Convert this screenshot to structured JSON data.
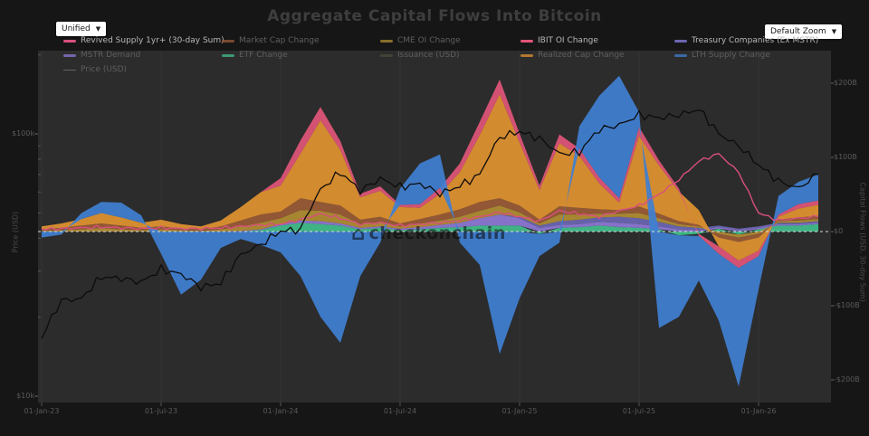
{
  "title": "Aggregate Capital Flows Into Bitcoin",
  "controls": {
    "left_dropdown": "Unified",
    "right_dropdown": "Default Zoom",
    "caret": "▼"
  },
  "watermark": {
    "icon": "⌂",
    "text": "checkonchain"
  },
  "legend": {
    "items": [
      {
        "label": "Revived Supply 1yr+ (30-day Sum)",
        "color": "#d94f7e",
        "dim": false,
        "row": 0,
        "col": 0,
        "marker": "line"
      },
      {
        "label": "Market Cap Change",
        "color": "#9a5a35",
        "dim": true,
        "row": 0,
        "col": 1,
        "marker": "line"
      },
      {
        "label": "CME OI Change",
        "color": "#b08d33",
        "dim": true,
        "row": 0,
        "col": 2,
        "marker": "line"
      },
      {
        "label": "IBIT OI Change",
        "color": "#e05578",
        "dim": false,
        "row": 0,
        "col": 3,
        "marker": "line"
      },
      {
        "label": "Treasury Companies (Ex MSTR)",
        "color": "#6b66b3",
        "dim": false,
        "row": 0,
        "col": 4,
        "marker": "line"
      },
      {
        "label": "MSTR Demand",
        "color": "#8d77d4",
        "dim": true,
        "row": 1,
        "col": 0,
        "marker": "line"
      },
      {
        "label": "ETF Change",
        "color": "#41bd8b",
        "dim": true,
        "row": 1,
        "col": 1,
        "marker": "line"
      },
      {
        "label": "Issuance (USD)",
        "color": "#4a4a3a",
        "dim": true,
        "row": 1,
        "col": 2,
        "marker": "line"
      },
      {
        "label": "Realized Cap Change",
        "color": "#e0922f",
        "dim": true,
        "row": 1,
        "col": 3,
        "marker": "line"
      },
      {
        "label": "LTH Supply Change",
        "color": "#3f7fd1",
        "dim": true,
        "row": 1,
        "col": 4,
        "marker": "line"
      },
      {
        "label": "Price (USD)",
        "color": "#777777",
        "dim": true,
        "row": 2,
        "col": 0,
        "marker": "thin-line"
      }
    ]
  },
  "axes": {
    "x": {
      "ticks": [
        {
          "label": "01-Jan-23",
          "t": 0
        },
        {
          "label": "01-Jul-23",
          "t": 6
        },
        {
          "label": "01-Jan-24",
          "t": 12
        },
        {
          "label": "01-Jul-24",
          "t": 18
        },
        {
          "label": "01-Jan-25",
          "t": 24
        },
        {
          "label": "01-Jul-25",
          "t": 30
        },
        {
          "label": "01-Jan-26",
          "t": 36
        }
      ]
    },
    "left": {
      "title": "Price (USD)",
      "scale": "log",
      "ticks": [
        {
          "label": "$100k",
          "value": 100000
        },
        {
          "label": "$10k",
          "value": 10000
        }
      ],
      "range_usd": [
        9500,
        208000
      ]
    },
    "right": {
      "title": "Capital Flows (USD, 30-day Sum)",
      "scale": "linear",
      "ticks": [
        {
          "label": "$200B",
          "value": 200
        },
        {
          "label": "$100B",
          "value": 100
        },
        {
          "label": "$0",
          "value": 0
        },
        {
          "label": "-$100B",
          "value": -100
        },
        {
          "label": "-$200B",
          "value": -200
        }
      ],
      "range_billion_usd": [
        -230,
        244
      ]
    }
  },
  "chart_data": {
    "type": "area",
    "x": {
      "start": "Jan-2023",
      "step_months": 1,
      "count": 40
    },
    "zero_line": 0,
    "units_right": "billion USD (30-day sum)",
    "units_left": "USD",
    "series": [
      {
        "name": "ETF Change",
        "kind": "stacked-area",
        "axis": "right",
        "color": "#41bd8b",
        "values": [
          0,
          0,
          0,
          0,
          0,
          0,
          0,
          0,
          0,
          0,
          0,
          2,
          8,
          12,
          10,
          8,
          3,
          5,
          2,
          3,
          5,
          6,
          8,
          8,
          8,
          -3,
          5,
          6,
          8,
          6,
          5,
          3,
          -5,
          -3,
          4,
          -4,
          3,
          8,
          8,
          10
        ]
      },
      {
        "name": "MSTR Demand",
        "kind": "stacked-area",
        "axis": "right",
        "color": "#8d77d4",
        "values": [
          0,
          0,
          0,
          0,
          0,
          0,
          0,
          0,
          0,
          0,
          1,
          1,
          2,
          3,
          4,
          3,
          2,
          2,
          2,
          3,
          4,
          6,
          10,
          15,
          10,
          5,
          4,
          4,
          5,
          6,
          5,
          4,
          3,
          2,
          2,
          2,
          2,
          2,
          2,
          2
        ]
      },
      {
        "name": "Treasury Companies (Ex MSTR)",
        "kind": "stacked-area",
        "axis": "right",
        "color": "#6b66b3",
        "values": [
          0,
          0,
          0,
          0,
          0,
          0,
          0,
          0,
          0,
          0,
          0,
          0,
          0,
          0,
          0,
          0,
          0,
          0,
          0,
          0,
          0,
          0,
          0,
          0,
          2,
          3,
          5,
          6,
          6,
          8,
          8,
          6,
          4,
          3,
          2,
          2,
          2,
          2,
          2,
          2
        ]
      },
      {
        "name": "CME OI Change",
        "kind": "stacked-area",
        "axis": "right",
        "color": "#b08d33",
        "values": [
          1,
          2,
          3,
          5,
          3,
          2,
          3,
          2,
          1,
          3,
          6,
          9,
          8,
          14,
          14,
          12,
          5,
          6,
          3,
          5,
          6,
          8,
          10,
          12,
          6,
          3,
          9,
          7,
          5,
          4,
          7,
          5,
          3,
          2,
          -3,
          -4,
          -3,
          2,
          3,
          3
        ]
      },
      {
        "name": "Market Cap Change",
        "kind": "stacked-area",
        "axis": "right",
        "color": "#9a5a35",
        "values": [
          2,
          3,
          5,
          6,
          5,
          3,
          4,
          2,
          2,
          4,
          8,
          11,
          9,
          16,
          12,
          12,
          6,
          7,
          4,
          6,
          8,
          10,
          12,
          10,
          9,
          5,
          11,
          9,
          6,
          5,
          9,
          6,
          4,
          2,
          -5,
          -6,
          -5,
          2,
          4,
          4
        ]
      },
      {
        "name": "Realized Cap Change",
        "kind": "stacked-area",
        "axis": "right",
        "color": "#e0922f",
        "values": [
          4,
          6,
          9,
          14,
          11,
          7,
          9,
          6,
          4,
          8,
          18,
          30,
          35,
          60,
          110,
          75,
          30,
          35,
          22,
          15,
          28,
          50,
          90,
          140,
          85,
          40,
          85,
          70,
          35,
          10,
          95,
          65,
          40,
          20,
          -12,
          -25,
          -18,
          4,
          12,
          15
        ]
      },
      {
        "name": "IBIT OI Change",
        "kind": "stacked-area",
        "axis": "right",
        "color": "#e05578",
        "values": [
          0,
          0,
          0,
          0,
          0,
          0,
          0,
          0,
          0,
          0,
          0,
          0,
          10,
          18,
          18,
          12,
          5,
          6,
          3,
          5,
          8,
          12,
          18,
          20,
          12,
          6,
          12,
          10,
          8,
          6,
          12,
          7,
          4,
          -3,
          -10,
          -10,
          -7,
          3,
          6,
          6
        ]
      },
      {
        "name": "LTH Supply Change",
        "kind": "stacked-area",
        "axis": "right",
        "color": "#3f7fd1",
        "values": [
          -8,
          -4,
          8,
          15,
          20,
          10,
          -30,
          -85,
          -65,
          -22,
          -10,
          -18,
          -28,
          -60,
          -115,
          -150,
          -60,
          -15,
          22,
          55,
          45,
          -15,
          -45,
          -165,
          -90,
          -30,
          -15,
          30,
          110,
          165,
          20,
          -130,
          -110,
          -60,
          -90,
          -160,
          -45,
          25,
          30,
          35
        ]
      },
      {
        "name": "Revived Supply 1yr+ (30-day Sum)",
        "kind": "line",
        "axis": "right",
        "color": "#d94f7e",
        "values": [
          3,
          4,
          5,
          6,
          5,
          4,
          5,
          4,
          4,
          5,
          7,
          9,
          10,
          16,
          24,
          18,
          10,
          12,
          8,
          10,
          12,
          15,
          20,
          26,
          20,
          14,
          28,
          24,
          20,
          28,
          35,
          50,
          70,
          95,
          105,
          80,
          25,
          15,
          18,
          20
        ]
      },
      {
        "name": "Price (USD)",
        "kind": "line",
        "axis": "left",
        "color": "#0c0c0c",
        "values": [
          16600,
          23200,
          23500,
          28500,
          28100,
          27200,
          30400,
          29200,
          26000,
          27000,
          34600,
          37800,
          42600,
          43100,
          61200,
          71300,
          60600,
          67500,
          62700,
          64600,
          59100,
          63300,
          69900,
          97000,
          102000,
          96000,
          84000,
          85000,
          104000,
          108000,
          118000,
          115000,
          118000,
          124000,
          100000,
          90000,
          76000,
          66000,
          62000,
          70000
        ]
      }
    ]
  }
}
